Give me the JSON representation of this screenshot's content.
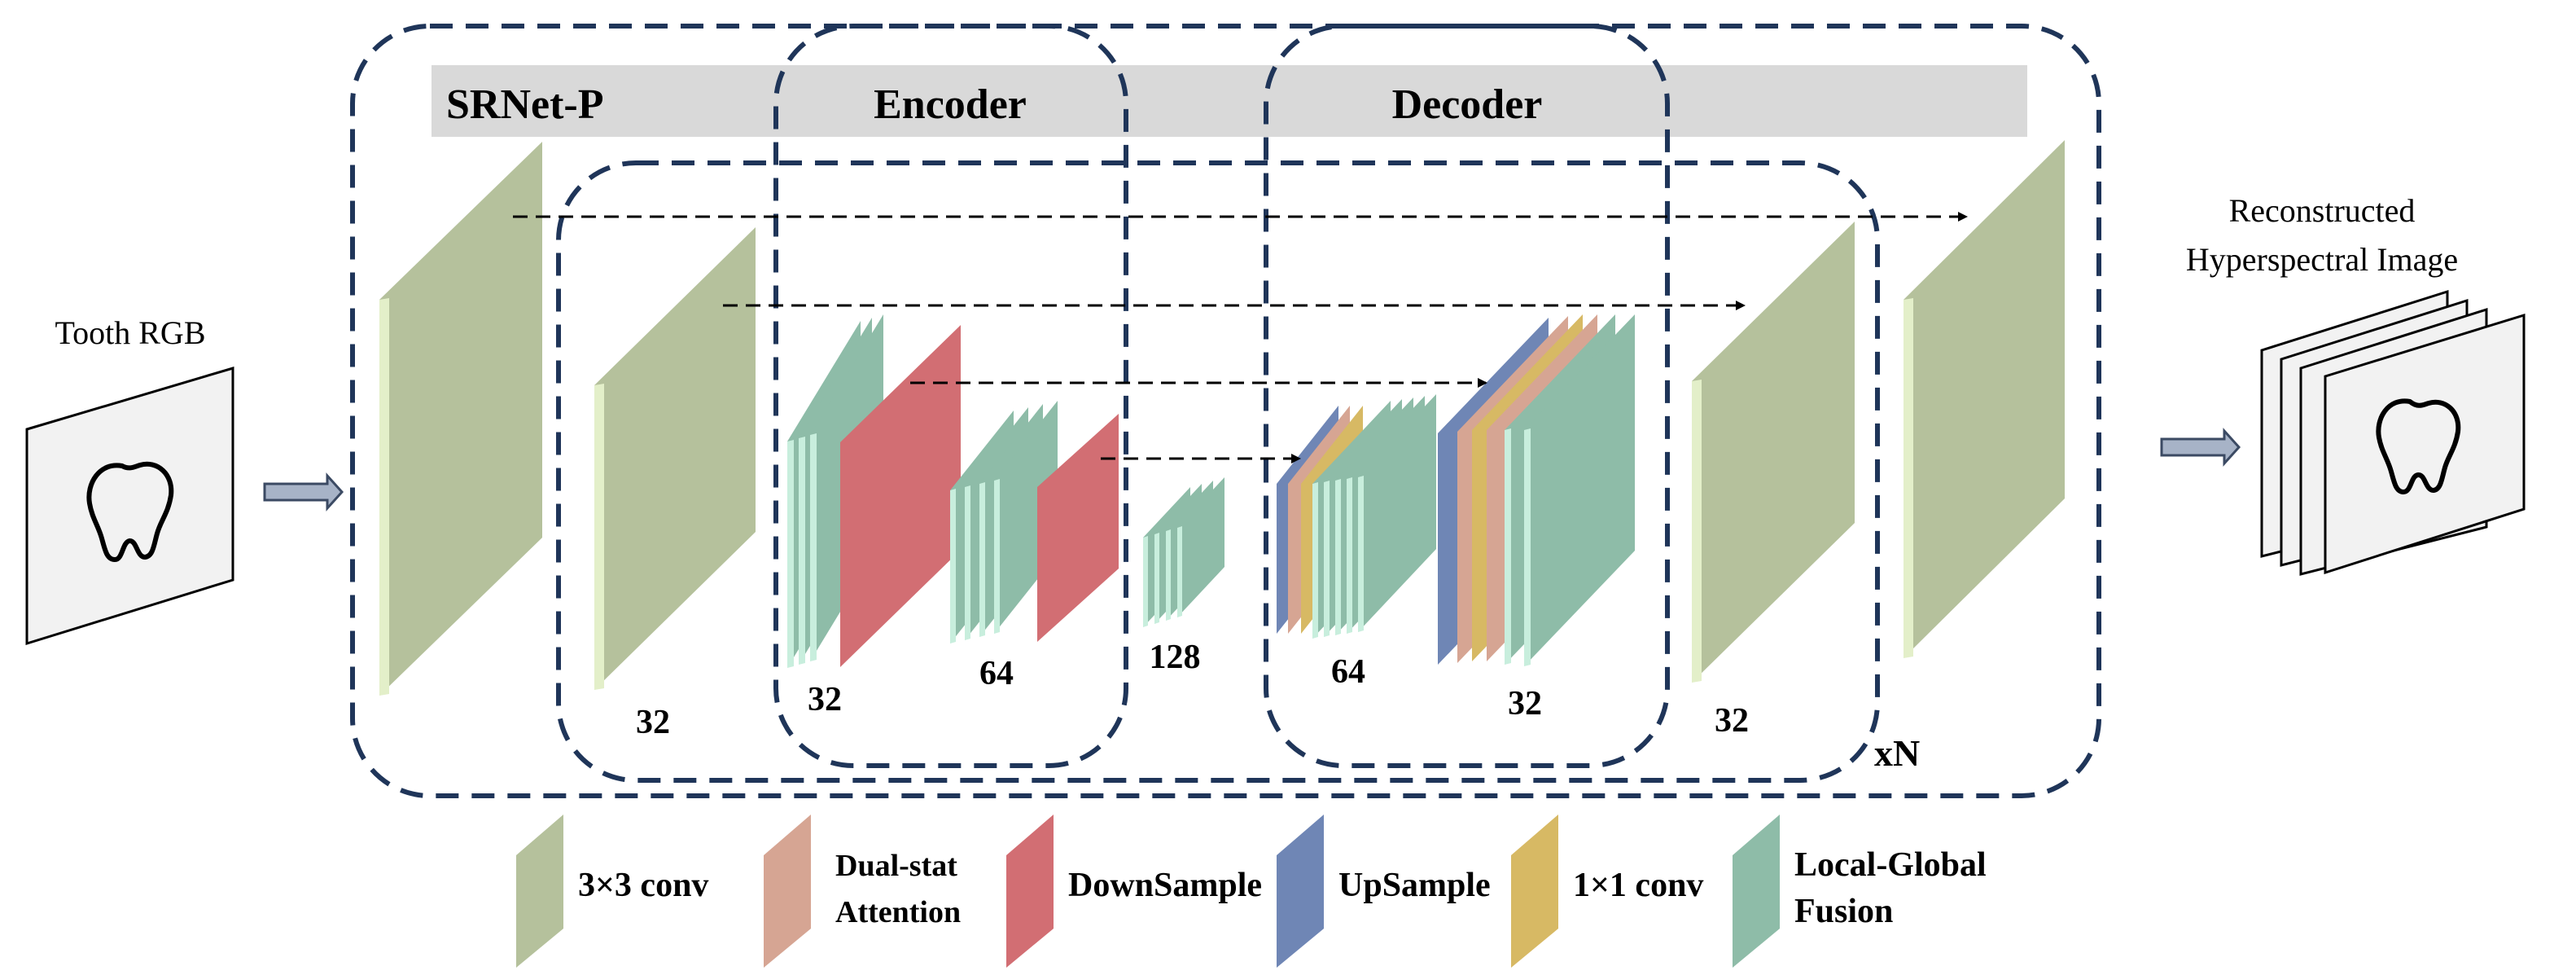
{
  "input": {
    "label": "Tooth RGB",
    "icon": "tooth-icon"
  },
  "output": {
    "label_line1": "Reconstructed",
    "label_line2": "Hyperspectral Image",
    "icon": "tooth-icon"
  },
  "header": {
    "model_name": "SRNet-P",
    "encoder_label": "Encoder",
    "decoder_label": "Decoder"
  },
  "channels": {
    "outer_in": "32",
    "encoder_lvl1": "32",
    "encoder_lvl2": "64",
    "bottleneck": "128",
    "decoder_lvl2": "64",
    "decoder_lvl1": "32",
    "outer_out": "32"
  },
  "repeat_label": "xN",
  "legend": [
    {
      "key": "conv3x3",
      "line1": "3×3 conv",
      "line2": "",
      "color": "#b5c19c"
    },
    {
      "key": "dual_stat",
      "line1": "Dual-stat",
      "line2": "Attention",
      "color": "#d6a593"
    },
    {
      "key": "downsample",
      "line1": "DownSample",
      "line2": "",
      "color": "#d26e73"
    },
    {
      "key": "upsample",
      "line1": "UpSample",
      "line2": "",
      "color": "#6f86b5"
    },
    {
      "key": "conv1x1",
      "line1": "1×1 conv",
      "line2": "",
      "color": "#d7b964"
    },
    {
      "key": "lgf",
      "line1": "Local-Global",
      "line2": "Fusion",
      "color": "#8ebca8"
    }
  ],
  "colors": {
    "conv3x3": "#b5c19c",
    "conv3x3_edge": "#e3efc9",
    "lgf": "#8ebca8",
    "lgf_edge": "#c8eedd",
    "downsample": "#d26e73",
    "upsample": "#6f86b5",
    "dual_stat": "#d6a593",
    "conv1x1": "#d7b964",
    "dashed_box": "#1f3559",
    "header_bar": "#d9d9d9",
    "arrow": "#a7b3c7"
  }
}
